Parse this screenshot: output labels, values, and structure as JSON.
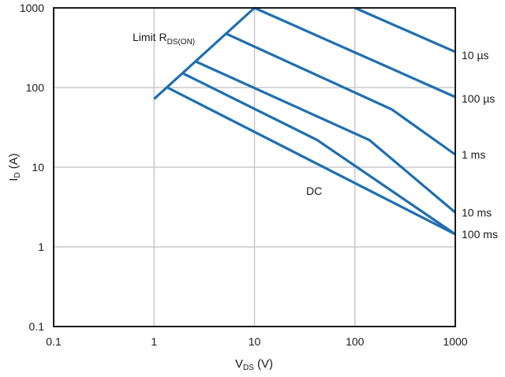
{
  "chart_data": {
    "type": "line",
    "xscale": "log",
    "yscale": "log",
    "xlim": [
      0.1,
      1000
    ],
    "ylim": [
      0.1,
      1000
    ],
    "grid": true,
    "line_color": "#1f6eb0",
    "xlabel": {
      "main": "V",
      "sub": "DS",
      "unit": " (V)"
    },
    "ylabel": {
      "main": "I",
      "sub": "D",
      "unit": " (A)"
    },
    "xticks": [
      {
        "value": 0.1,
        "label": "0.1"
      },
      {
        "value": 1,
        "label": "1"
      },
      {
        "value": 10,
        "label": "10"
      },
      {
        "value": 100,
        "label": "100"
      },
      {
        "value": 1000,
        "label": "1000"
      }
    ],
    "yticks": [
      {
        "value": 0.1,
        "label": "0.1"
      },
      {
        "value": 1,
        "label": "1"
      },
      {
        "value": 10,
        "label": "10"
      },
      {
        "value": 100,
        "label": "100"
      },
      {
        "value": 1000,
        "label": "1000"
      }
    ],
    "series": [
      {
        "name": "Limit RDS(ON)",
        "label_main": "Limit R",
        "label_sub": "DS(ON)",
        "points": [
          [
            1,
            72
          ],
          [
            10,
            1000
          ]
        ]
      },
      {
        "name": "10 µs",
        "points": [
          [
            100,
            1000
          ],
          [
            1000,
            280
          ]
        ]
      },
      {
        "name": "100 µs",
        "points": [
          [
            10,
            1000
          ],
          [
            1000,
            76
          ]
        ]
      },
      {
        "name": "1 ms",
        "points": [
          [
            5.3,
            470
          ],
          [
            234,
            53
          ],
          [
            1000,
            14.4
          ]
        ]
      },
      {
        "name": "10 ms",
        "points": [
          [
            2.6,
            212
          ],
          [
            139,
            22
          ],
          [
            1000,
            2.7
          ]
        ]
      },
      {
        "name": "100 ms",
        "points": [
          [
            1.95,
            150
          ],
          [
            42,
            22
          ],
          [
            1000,
            1.44
          ]
        ]
      },
      {
        "name": "DC",
        "points": [
          [
            1.36,
            100
          ],
          [
            1000,
            1.44
          ]
        ]
      }
    ]
  }
}
